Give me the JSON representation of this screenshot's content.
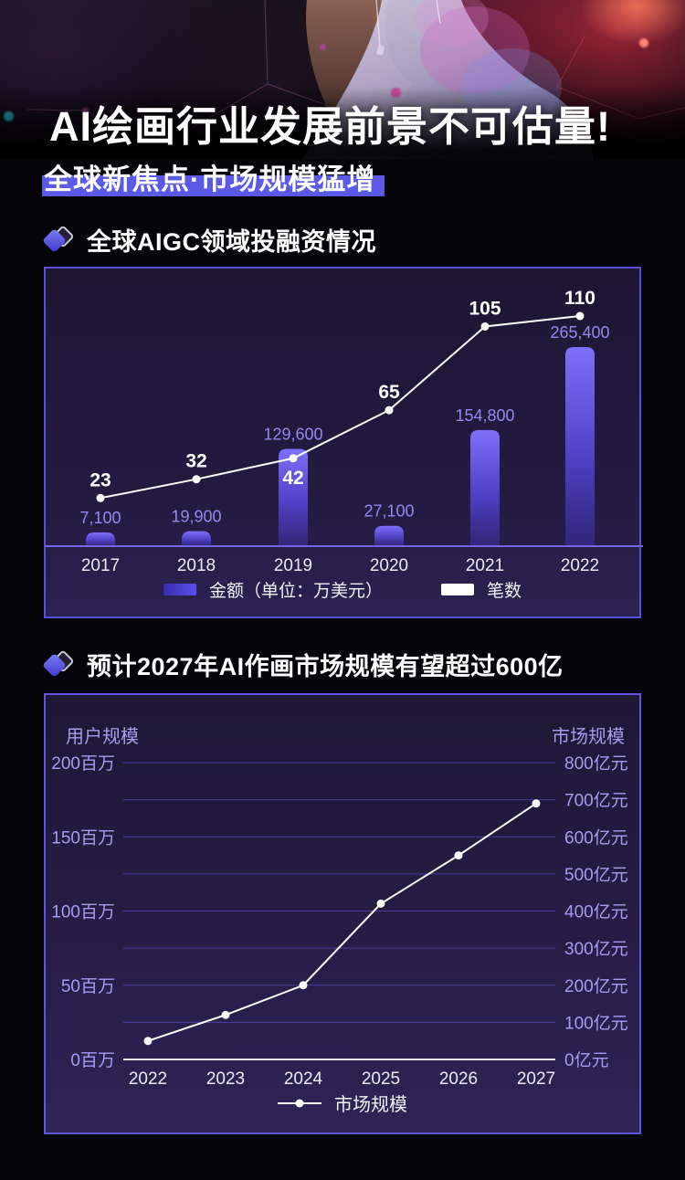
{
  "header": {
    "title": "AI绘画行业发展前景不可估量!",
    "subtitle": "全球新焦点·市场规模猛增"
  },
  "sections": [
    {
      "heading": "全球AIGC领域投融资情况"
    },
    {
      "heading": "预计2027年AI作画市场规模有望超过600亿"
    }
  ],
  "colors": {
    "accent_highlight": "#5a59e8",
    "panel_border": "#5b4ed8",
    "bar_gradient_top": "#7e6ffa",
    "bar_gradient_bottom": "#32277f",
    "bar_label_purple": "#9488f0",
    "axis_tick_purple": "#a79bf0",
    "line_series_white": "#ffffff",
    "hero_red_glow": "#d42c44",
    "hero_pink_bokeh": "#c84a9e",
    "hero_cyan_bokeh": "#23b4c8"
  },
  "chart_data": [
    {
      "type": "bar",
      "title": "全球AIGC领域投融资情况",
      "categories": [
        "2017",
        "2018",
        "2019",
        "2020",
        "2021",
        "2022"
      ],
      "series": [
        {
          "name": "金额（单位：万美元）",
          "chart_type": "bar",
          "values": [
            7100,
            19900,
            129600,
            27100,
            154800,
            265400
          ],
          "labels": [
            "7,100",
            "19,900",
            "129,600",
            "27,100",
            "154,800",
            "265,400"
          ],
          "color": "#5b50ec"
        },
        {
          "name": "笔数",
          "chart_type": "line",
          "values": [
            23,
            32,
            42,
            65,
            105,
            110
          ],
          "labels": [
            "23",
            "32",
            "42",
            "65",
            "105",
            "110"
          ],
          "color": "#ffffff"
        }
      ],
      "xlabel": "",
      "ylabel": "",
      "bar_axis_range": [
        0,
        280000
      ],
      "line_axis_range": [
        0,
        130
      ],
      "grid": false,
      "legend_position": "bottom"
    },
    {
      "type": "line",
      "title": "预计2027年AI作画市场规模有望超过600亿",
      "categories": [
        "2022",
        "2023",
        "2024",
        "2025",
        "2026",
        "2027"
      ],
      "series": [
        {
          "name": "市场规模",
          "values": [
            50,
            120,
            200,
            420,
            550,
            690
          ],
          "unit": "亿元",
          "values_estimated_from_plot": true,
          "color": "#ffffff"
        }
      ],
      "left_axis": {
        "title": "用户规模",
        "ticks": [
          "200百万",
          "150百万",
          "100百万",
          "50百万",
          "0百万"
        ],
        "range": [
          0,
          200
        ]
      },
      "right_axis": {
        "title": "市场规模",
        "ticks": [
          "800亿元",
          "700亿元",
          "600亿元",
          "500亿元",
          "400亿元",
          "300亿元",
          "200亿元",
          "100亿元",
          "0亿元"
        ],
        "range": [
          0,
          800
        ]
      },
      "grid": true,
      "legend_position": "bottom"
    }
  ]
}
